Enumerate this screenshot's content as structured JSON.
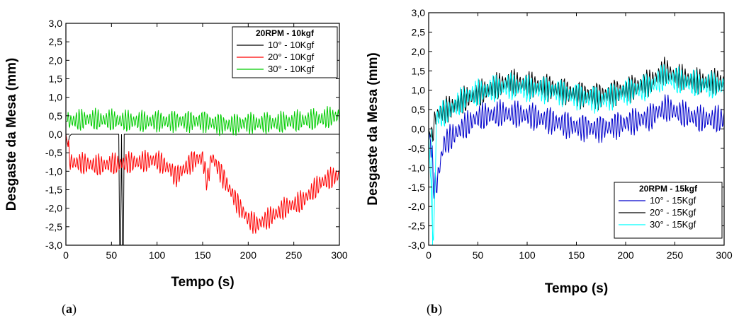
{
  "chart_data": [
    {
      "type": "line",
      "panel_label": "a",
      "title": "",
      "xlabel": "Tempo (s)",
      "ylabel": "Desgaste da Mesa (mm)",
      "xlim": [
        0,
        300
      ],
      "ylim": [
        -3.0,
        3.0
      ],
      "xticks": [
        "0",
        "50",
        "100",
        "150",
        "200",
        "250",
        "300"
      ],
      "yticks": [
        "3,0",
        "2,5",
        "2,0",
        "1,5",
        "1,0",
        "0,5",
        "0,0",
        "-0,5",
        "-1,0",
        "-1,5",
        "-2,0",
        "-2,5",
        "-3,0"
      ],
      "legend": {
        "title": "20RPM - 10kgf",
        "placement": "top-right"
      },
      "series": [
        {
          "name": "10° - 10Kgf",
          "color": "#000000",
          "x": [
            0,
            2,
            4,
            6,
            58,
            59,
            60,
            61,
            62,
            63,
            64,
            300
          ],
          "y": [
            0,
            -0.3,
            -0.05,
            0,
            0,
            -3.0,
            -3.0,
            0,
            -3.0,
            -3.0,
            0,
            0
          ]
        },
        {
          "name": "20° - 10Kgf",
          "color": "#ff0000",
          "x": [
            0,
            5,
            20,
            40,
            50,
            60,
            80,
            100,
            115,
            120,
            140,
            150,
            155,
            160,
            170,
            180,
            190,
            200,
            210,
            220,
            240,
            260,
            280,
            300
          ],
          "y": [
            0,
            -0.75,
            -0.8,
            -0.85,
            -0.8,
            -0.8,
            -0.75,
            -0.7,
            -0.95,
            -1.15,
            -0.7,
            -0.65,
            -1.3,
            -0.6,
            -1.05,
            -1.5,
            -1.95,
            -2.3,
            -2.45,
            -2.3,
            -2.0,
            -1.8,
            -1.3,
            -1.1
          ]
        },
        {
          "name": "30° - 10Kgf",
          "color": "#00cc00",
          "x": [
            0,
            25,
            50,
            75,
            100,
            125,
            150,
            175,
            200,
            225,
            250,
            275,
            300
          ],
          "y": [
            0.35,
            0.4,
            0.38,
            0.35,
            0.35,
            0.35,
            0.35,
            0.25,
            0.3,
            0.3,
            0.35,
            0.4,
            0.5
          ]
        }
      ]
    },
    {
      "type": "line",
      "panel_label": "b",
      "title": "",
      "xlabel": "Tempo (s)",
      "ylabel": "Desgaste da Mesa (mm)",
      "xlim": [
        0,
        300
      ],
      "ylim": [
        -3.0,
        3.0
      ],
      "xticks": [
        "0",
        "50",
        "100",
        "150",
        "200",
        "250",
        "300"
      ],
      "yticks": [
        "3,0",
        "2,5",
        "2,0",
        "1,5",
        "1,0",
        "0,5",
        "0,0",
        "-0,5",
        "-1,0",
        "-1,5",
        "-2,0",
        "-2,5",
        "-3,0"
      ],
      "legend": {
        "title": "20RPM - 15kgf",
        "placement": "bottom-right"
      },
      "series": [
        {
          "name": "10° - 15Kgf",
          "color": "#0000cc",
          "x": [
            0,
            3,
            5,
            8,
            15,
            30,
            50,
            75,
            100,
            125,
            150,
            175,
            200,
            225,
            240,
            250,
            275,
            300
          ],
          "y": [
            0,
            -0.5,
            -1.45,
            -1.45,
            -0.4,
            -0.05,
            0.3,
            0.4,
            0.35,
            0.2,
            0.05,
            0.0,
            0.15,
            0.3,
            0.55,
            0.45,
            0.25,
            0.25
          ]
        },
        {
          "name": "20° - 15Kgf",
          "color": "#000000",
          "x": [
            0,
            3,
            6,
            10,
            20,
            40,
            60,
            80,
            100,
            125,
            150,
            175,
            200,
            225,
            240,
            250,
            275,
            300
          ],
          "y": [
            0,
            -0.3,
            0.2,
            0.4,
            0.5,
            0.8,
            1.0,
            1.2,
            1.15,
            1.05,
            0.9,
            0.85,
            1.0,
            1.2,
            1.5,
            1.35,
            1.2,
            1.2
          ]
        },
        {
          "name": "30° - 15Kgf",
          "color": "#00ffff",
          "x": [
            0,
            3,
            5,
            8,
            20,
            40,
            60,
            80,
            100,
            125,
            150,
            175,
            200,
            225,
            240,
            250,
            275,
            300
          ],
          "y": [
            0,
            -2.0,
            -3.0,
            0.3,
            0.45,
            0.85,
            1.0,
            1.1,
            1.05,
            1.0,
            0.85,
            0.75,
            0.95,
            1.1,
            1.35,
            1.25,
            1.15,
            1.1
          ]
        }
      ]
    }
  ]
}
